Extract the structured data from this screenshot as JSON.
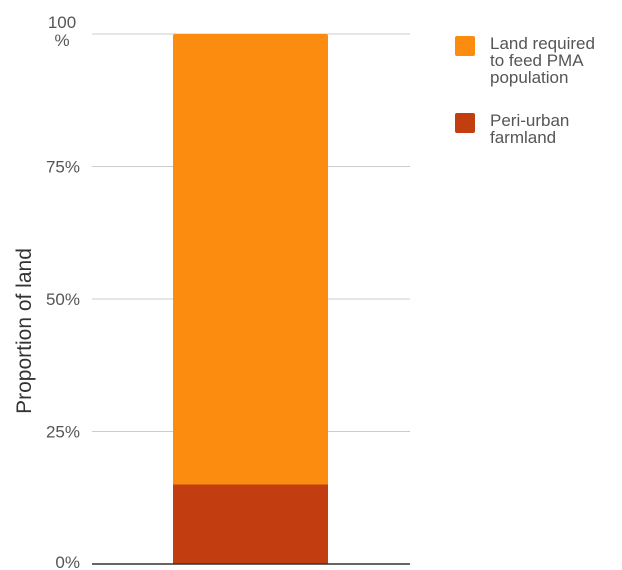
{
  "chart_data": {
    "type": "bar",
    "stacked": true,
    "categories": [
      ""
    ],
    "series": [
      {
        "name": "Peri-urban farmland",
        "values": [
          15
        ],
        "color": "#c23e10"
      },
      {
        "name": "Land required to feed PMA population",
        "values": [
          85
        ],
        "color": "#fb8c0f"
      }
    ],
    "ylabel": "Proportion of land",
    "ylim": [
      0,
      100
    ],
    "yticks": [
      {
        "value": 0,
        "label": "0%"
      },
      {
        "value": 25,
        "label": "25%"
      },
      {
        "value": 50,
        "label": "50%"
      },
      {
        "value": 75,
        "label": "75%"
      },
      {
        "value": 100,
        "label": "100 %"
      }
    ],
    "grid": true,
    "legend_position": "top-right",
    "legend": [
      {
        "label": "Land required to feed PMA population",
        "lines": [
          "Land required",
          "to feed PMA",
          "population"
        ],
        "color": "#fb8c0f"
      },
      {
        "label": "Peri-urban farmland",
        "lines": [
          "Peri-urban",
          "farmland"
        ],
        "color": "#c23e10"
      }
    ]
  }
}
